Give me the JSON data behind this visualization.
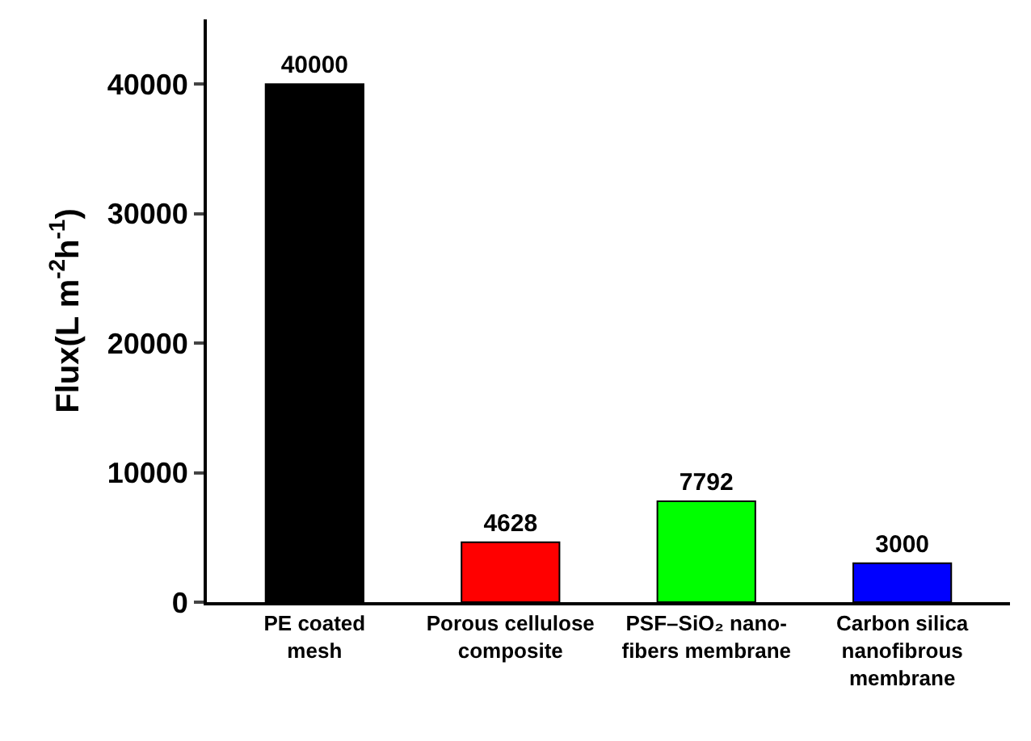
{
  "chart_data": {
    "type": "bar",
    "ylabel": "Flux(L m$^{-2}$h$^{-1}$)",
    "categories": [
      "PE coated\nmesh",
      "Porous cellulose\ncomposite",
      "PSF–SiO₂ nano-\nfibers membrane",
      "Carbon silica\nnanofibrous\nmembrane"
    ],
    "values": [
      40000,
      4628,
      7792,
      3000
    ],
    "colors": [
      "#000000",
      "#ff0000",
      "#00ff00",
      "#0000ff"
    ],
    "ylim": [
      0,
      45000
    ],
    "yticks": [
      0,
      10000,
      20000,
      30000,
      40000
    ],
    "data_labels": true
  }
}
